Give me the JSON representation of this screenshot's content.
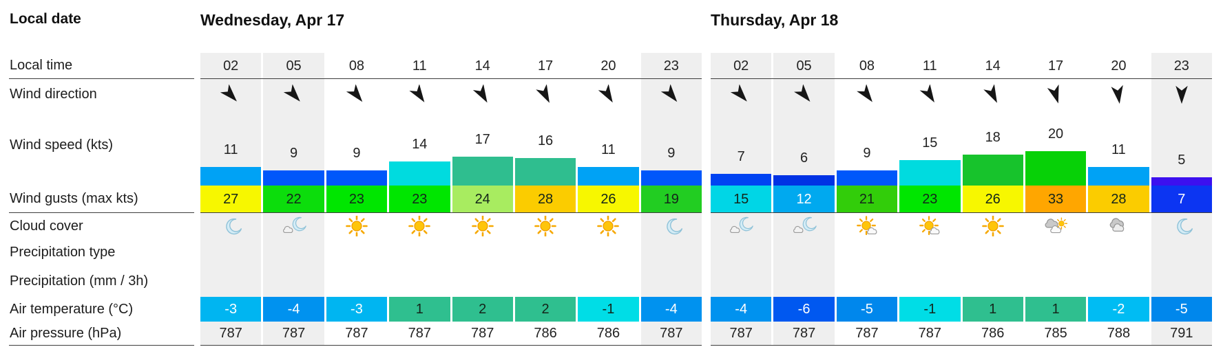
{
  "labels": {
    "local_date": "Local date",
    "local_time": "Local time",
    "wind_direction": "Wind direction",
    "wind_speed": "Wind speed (kts)",
    "wind_gusts": "Wind gusts (max kts)",
    "cloud_cover": "Cloud cover",
    "precip_type": "Precipitation type",
    "precip_amount": "Precipitation (mm / 3h)",
    "air_temp": "Air temperature (°C)",
    "air_pressure": "Air pressure (hPa)"
  },
  "colors": {
    "night_column_bg": "#efefef",
    "divider": "#3c3c3c",
    "text": "#1c1c1c"
  },
  "days": [
    {
      "date": "Wednesday, Apr 17",
      "columns": [
        {
          "time": "02",
          "night": true,
          "wind_dir_deg": 137,
          "wind_speed": 11,
          "speed_color": "#00a2f5",
          "gust": 27,
          "gust_color": "#f7f700",
          "gust_text_white": false,
          "cloud": "moon",
          "temp": -3,
          "temp_color": "#00b5f1",
          "temp_text_white": true,
          "pressure": 787
        },
        {
          "time": "05",
          "night": true,
          "wind_dir_deg": 138,
          "wind_speed": 9,
          "speed_color": "#0057fa",
          "gust": 22,
          "gust_color": "#0cdd0c",
          "gust_text_white": false,
          "cloud": "moon-cloud",
          "temp": -4,
          "temp_color": "#0092ef",
          "temp_text_white": true,
          "pressure": 787
        },
        {
          "time": "08",
          "night": false,
          "wind_dir_deg": 141,
          "wind_speed": 9,
          "speed_color": "#0057fa",
          "gust": 23,
          "gust_color": "#00e600",
          "gust_text_white": false,
          "cloud": "sun",
          "temp": -3,
          "temp_color": "#00b5f1",
          "temp_text_white": true,
          "pressure": 787
        },
        {
          "time": "11",
          "night": false,
          "wind_dir_deg": 146,
          "wind_speed": 14,
          "speed_color": "#00dbdf",
          "gust": 23,
          "gust_color": "#00e600",
          "gust_text_white": false,
          "cloud": "sun",
          "temp": 1,
          "temp_color": "#2fbf8f",
          "temp_text_white": false,
          "pressure": 787
        },
        {
          "time": "14",
          "night": false,
          "wind_dir_deg": 150,
          "wind_speed": 17,
          "speed_color": "#2fbe8f",
          "gust": 24,
          "gust_color": "#a8ec60",
          "gust_text_white": false,
          "cloud": "sun",
          "temp": 2,
          "temp_color": "#2fbf8f",
          "temp_text_white": false,
          "pressure": 787
        },
        {
          "time": "17",
          "night": false,
          "wind_dir_deg": 153,
          "wind_speed": 16,
          "speed_color": "#2fbe8f",
          "gust": 28,
          "gust_color": "#fbcc00",
          "gust_text_white": false,
          "cloud": "sun",
          "temp": 2,
          "temp_color": "#2fbf8f",
          "temp_text_white": false,
          "pressure": 786
        },
        {
          "time": "20",
          "night": false,
          "wind_dir_deg": 149,
          "wind_speed": 11,
          "speed_color": "#00a2f5",
          "gust": 26,
          "gust_color": "#f7f700",
          "gust_text_white": false,
          "cloud": "sun",
          "temp": -1,
          "temp_color": "#00dde6",
          "temp_text_white": false,
          "pressure": 786
        },
        {
          "time": "23",
          "night": true,
          "wind_dir_deg": 141,
          "wind_speed": 9,
          "speed_color": "#0057fa",
          "gust": 19,
          "gust_color": "#22cd22",
          "gust_text_white": false,
          "cloud": "moon",
          "temp": -4,
          "temp_color": "#0092ef",
          "temp_text_white": true,
          "pressure": 787
        }
      ]
    },
    {
      "date": "Thursday, Apr 18",
      "columns": [
        {
          "time": "02",
          "night": true,
          "wind_dir_deg": 138,
          "wind_speed": 7,
          "speed_color": "#0043f2",
          "gust": 15,
          "gust_color": "#00d6e6",
          "gust_text_white": false,
          "cloud": "moon-cloud",
          "temp": -4,
          "temp_color": "#0092ef",
          "temp_text_white": true,
          "pressure": 787
        },
        {
          "time": "05",
          "night": true,
          "wind_dir_deg": 140,
          "wind_speed": 6,
          "speed_color": "#0032e4",
          "gust": 12,
          "gust_color": "#00a9ef",
          "gust_text_white": true,
          "cloud": "moon-cloud",
          "temp": -6,
          "temp_color": "#0058f0",
          "temp_text_white": true,
          "pressure": 787
        },
        {
          "time": "08",
          "night": false,
          "wind_dir_deg": 143,
          "wind_speed": 9,
          "speed_color": "#0057fa",
          "gust": 21,
          "gust_color": "#32cd0a",
          "gust_text_white": false,
          "cloud": "sun-small-cloud",
          "temp": -5,
          "temp_color": "#0087ec",
          "temp_text_white": true,
          "pressure": 787
        },
        {
          "time": "11",
          "night": false,
          "wind_dir_deg": 148,
          "wind_speed": 15,
          "speed_color": "#00dbdf",
          "gust": 23,
          "gust_color": "#00e600",
          "gust_text_white": false,
          "cloud": "sun-small-cloud",
          "temp": -1,
          "temp_color": "#00dde6",
          "temp_text_white": false,
          "pressure": 787
        },
        {
          "time": "14",
          "night": false,
          "wind_dir_deg": 153,
          "wind_speed": 18,
          "speed_color": "#17c32c",
          "gust": 26,
          "gust_color": "#f7f700",
          "gust_text_white": false,
          "cloud": "sun",
          "temp": 1,
          "temp_color": "#2fbf8f",
          "temp_text_white": false,
          "pressure": 786
        },
        {
          "time": "17",
          "night": false,
          "wind_dir_deg": 163,
          "wind_speed": 20,
          "speed_color": "#07d107",
          "gust": 33,
          "gust_color": "#ffa600",
          "gust_text_white": false,
          "cloud": "cloud-sun",
          "temp": 1,
          "temp_color": "#2fbf8f",
          "temp_text_white": false,
          "pressure": 785
        },
        {
          "time": "20",
          "night": false,
          "wind_dir_deg": 172,
          "wind_speed": 11,
          "speed_color": "#00a2f5",
          "gust": 28,
          "gust_color": "#fbcc00",
          "gust_text_white": false,
          "cloud": "cloud",
          "temp": -2,
          "temp_color": "#00bcf3",
          "temp_text_white": true,
          "pressure": 788
        },
        {
          "time": "23",
          "night": true,
          "wind_dir_deg": 180,
          "wind_speed": 5,
          "speed_color": "#3c10ef",
          "gust": 7,
          "gust_color": "#0c35f2",
          "gust_text_white": true,
          "cloud": "moon",
          "temp": -5,
          "temp_color": "#0087ec",
          "temp_text_white": true,
          "pressure": 791
        }
      ]
    }
  ]
}
